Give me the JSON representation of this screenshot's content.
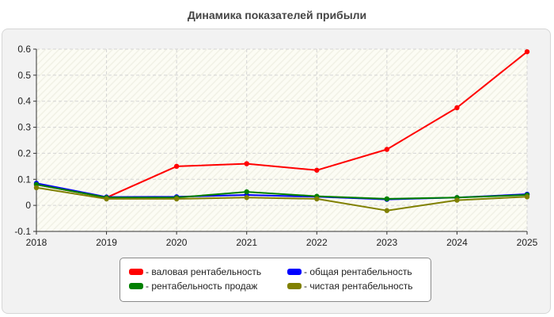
{
  "chart_data": {
    "type": "line",
    "title": "Динамика показателей прибыли",
    "xlabel": "",
    "ylabel": "",
    "x": [
      "2018",
      "2019",
      "2020",
      "2021",
      "2022",
      "2023",
      "2024",
      "2025"
    ],
    "ylim": [
      -0.1,
      0.6
    ],
    "yticks": [
      "-0.1",
      "0",
      "0.1",
      "0.2",
      "0.3",
      "0.4",
      "0.5",
      "0.6"
    ],
    "grid": true,
    "legend_position": "bottom",
    "series": [
      {
        "name": "- валовая рентабельность",
        "color": "#ff0000",
        "values": [
          0.08,
          0.03,
          0.15,
          0.16,
          0.135,
          0.215,
          0.375,
          0.59
        ]
      },
      {
        "name": "- общая рентабельность",
        "color": "#0000ff",
        "values": [
          0.085,
          0.032,
          0.033,
          0.04,
          0.033,
          0.023,
          0.03,
          0.043
        ]
      },
      {
        "name": "- рентабельность продаж",
        "color": "#008000",
        "values": [
          0.08,
          0.03,
          0.03,
          0.052,
          0.035,
          0.025,
          0.03,
          0.04
        ]
      },
      {
        "name": "- чистая рентабельность",
        "color": "#808000",
        "values": [
          0.068,
          0.025,
          0.025,
          0.03,
          0.025,
          -0.02,
          0.02,
          0.033
        ]
      }
    ]
  }
}
